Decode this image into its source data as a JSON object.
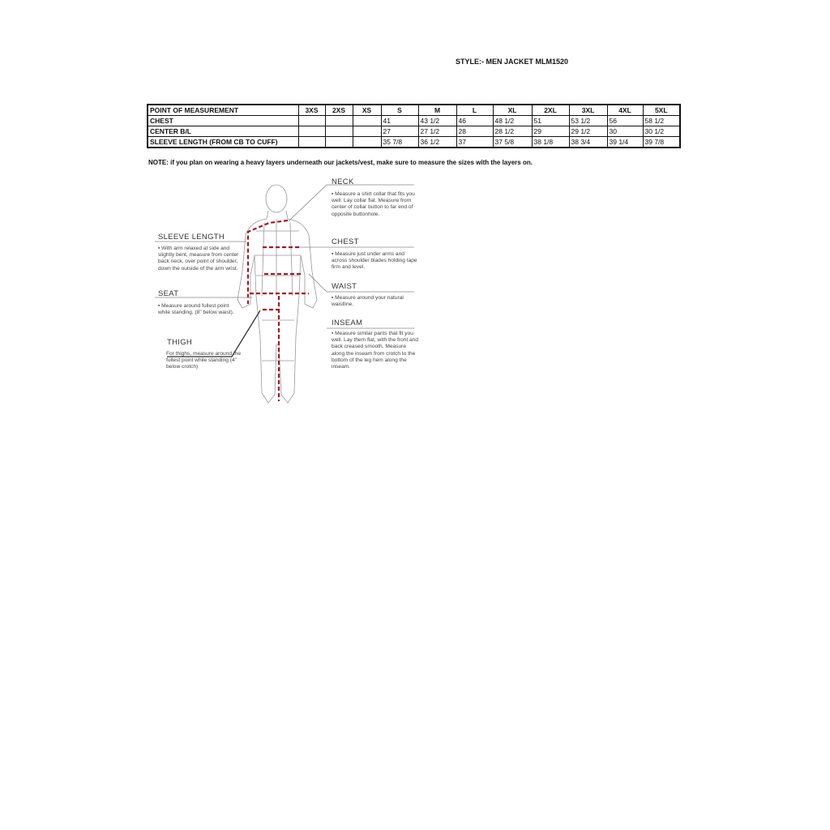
{
  "style_title": "STYLE:- MEN JACKET  MLM1520",
  "table": {
    "headers": [
      "POINT OF MEASUREMENT",
      "3XS",
      "2XS",
      "XS",
      "S",
      "M",
      "L",
      "XL",
      "2XL",
      "3XL",
      "4XL",
      "5XL"
    ],
    "rows": [
      [
        "CHEST",
        "",
        "",
        "",
        "41",
        "43 1/2",
        "46",
        "48 1/2",
        "51",
        "53 1/2",
        "56",
        "58 1/2"
      ],
      [
        "CENTER B/L",
        "",
        "",
        "",
        "27",
        "27 1/2",
        "28",
        "28 1/2",
        "29",
        "29 1/2",
        "30",
        "30 1/2"
      ],
      [
        "SLEEVE LENGTH (FROM CB TO CUFF)",
        "",
        "",
        "",
        "35 7/8",
        "36 1/2",
        "37",
        "37 5/8",
        "38 1/8",
        "38 3/4",
        "39 1/4",
        "39 7/8"
      ]
    ]
  },
  "note": "NOTE: if you plan on wearing a heavy layers underneath our jackets/vest, make sure to measure the sizes with the layers on.",
  "figure": {
    "neck": {
      "title": "NECK",
      "text": "▪ Measure a shirt collar that fits you well. Lay collar flat. Measure from center of collar button to far end of opposite buttonhole."
    },
    "chest": {
      "title": "CHEST",
      "text": "▪ Measure just under arms and across shoulder blades holding tape firm and level."
    },
    "waist": {
      "title": "WAIST",
      "text": "▪ Measure around your natural waistline."
    },
    "inseam": {
      "title": "INSEAM",
      "text": "▪ Measure similar pants that fit you well. Lay them flat, with the front and back creased smooth. Measure along the inseam from crotch to the bottom of the leg hem along the inseam."
    },
    "sleeve": {
      "title": "SLEEVE LENGTH",
      "text": "▪ With arm relaxed at side and slightly bent, measure from center back neck, over point of shoulder, down the outside of the arm wrist."
    },
    "seat": {
      "title": "SEAT",
      "text": "▪ Measure around fullest point while standing. (8\" below waist)."
    },
    "thigh": {
      "title": "THIGH",
      "text": "For thighs, measure around the fullest point while standing (4\" below crotch)"
    },
    "accent_color": "#a3162b"
  }
}
